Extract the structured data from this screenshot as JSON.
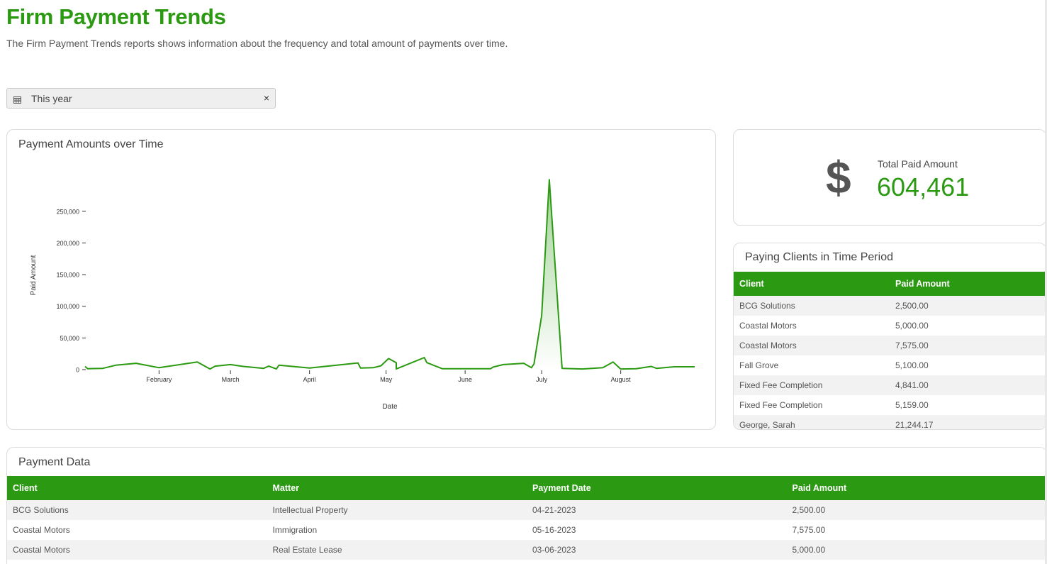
{
  "page": {
    "title": "Firm Payment Trends",
    "description": "The Firm Payment Trends reports shows information about the frequency and total amount of payments over time."
  },
  "filter": {
    "icon": "calendar-icon",
    "label": "This year",
    "clear": "×"
  },
  "chart_card": {
    "title": "Payment Amounts over Time"
  },
  "chart_data": {
    "type": "area",
    "title": "Payment Amounts over Time",
    "xlabel": "Date",
    "ylabel": "Paid Amount",
    "ylim": [
      0,
      280000
    ],
    "ytick_values": [
      0,
      50000,
      100000,
      150000,
      200000,
      250000
    ],
    "ytick_labels": [
      "0",
      "50,000",
      "100,000",
      "150,000",
      "200,000",
      "250,000"
    ],
    "xtick_labels": [
      "February",
      "March",
      "April",
      "May",
      "June",
      "July",
      "August"
    ],
    "xtick_dates": [
      "2023-02-01",
      "2023-03-01",
      "2023-04-01",
      "2023-05-01",
      "2023-06-01",
      "2023-07-01",
      "2023-08-01"
    ],
    "color": "#2b9a12",
    "points": [
      [
        "2023-01-03",
        5000
      ],
      [
        "2023-01-04",
        1500
      ],
      [
        "2023-01-10",
        2000
      ],
      [
        "2023-01-15",
        7000
      ],
      [
        "2023-01-23",
        10000
      ],
      [
        "2023-02-01",
        3000
      ],
      [
        "2023-02-16",
        12000
      ],
      [
        "2023-02-21",
        1000
      ],
      [
        "2023-02-23",
        5500
      ],
      [
        "2023-03-01",
        8000
      ],
      [
        "2023-03-06",
        5000
      ],
      [
        "2023-03-14",
        2000
      ],
      [
        "2023-03-16",
        5500
      ],
      [
        "2023-03-19",
        1000
      ],
      [
        "2023-03-20",
        7000
      ],
      [
        "2023-04-01",
        2500
      ],
      [
        "2023-04-20",
        10500
      ],
      [
        "2023-04-21",
        2500
      ],
      [
        "2023-04-26",
        3000
      ],
      [
        "2023-04-29",
        6000
      ],
      [
        "2023-05-02",
        17500
      ],
      [
        "2023-05-05",
        11000
      ],
      [
        "2023-05-05",
        1000
      ],
      [
        "2023-05-16",
        19000
      ],
      [
        "2023-05-17",
        11000
      ],
      [
        "2023-05-23",
        1500
      ],
      [
        "2023-06-06",
        1500
      ],
      [
        "2023-06-11",
        1500
      ],
      [
        "2023-06-12",
        4000
      ],
      [
        "2023-06-16",
        8000
      ],
      [
        "2023-06-24",
        10000
      ],
      [
        "2023-06-27",
        3000
      ],
      [
        "2023-06-28",
        9000
      ],
      [
        "2023-07-01",
        85000
      ],
      [
        "2023-07-04",
        300000
      ],
      [
        "2023-07-09",
        2000
      ],
      [
        "2023-07-17",
        1000
      ],
      [
        "2023-07-25",
        3000
      ],
      [
        "2023-07-29",
        12000
      ],
      [
        "2023-08-01",
        1000
      ],
      [
        "2023-08-07",
        1500
      ],
      [
        "2023-08-13",
        5000
      ],
      [
        "2023-08-15",
        2000
      ],
      [
        "2023-08-22",
        4500
      ],
      [
        "2023-08-30",
        4500
      ]
    ]
  },
  "total_card": {
    "icon": "dollar-icon",
    "symbol": "$",
    "label": "Total Paid Amount",
    "value": "604,461"
  },
  "clients_card": {
    "title": "Paying Clients in Time Period",
    "headers": [
      "Client",
      "Paid Amount"
    ],
    "rows": [
      [
        "BCG Solutions",
        "2,500.00"
      ],
      [
        "Coastal Motors",
        "5,000.00"
      ],
      [
        "Coastal Motors",
        "7,575.00"
      ],
      [
        "Fall Grove",
        "5,100.00"
      ],
      [
        "Fixed Fee Completion",
        "4,841.00"
      ],
      [
        "Fixed Fee Completion",
        "5,159.00"
      ],
      [
        "George, Sarah",
        "21,244.17"
      ]
    ]
  },
  "payments_card": {
    "title": "Payment Data",
    "headers": [
      "Client",
      "Matter",
      "Payment Date",
      "Paid Amount"
    ],
    "rows": [
      [
        "BCG Solutions",
        "Intellectual Property",
        "04-21-2023",
        "2,500.00"
      ],
      [
        "Coastal Motors",
        "Immigration",
        "05-16-2023",
        "7,575.00"
      ],
      [
        "Coastal Motors",
        "Real Estate Lease",
        "03-06-2023",
        "5,000.00"
      ]
    ]
  }
}
